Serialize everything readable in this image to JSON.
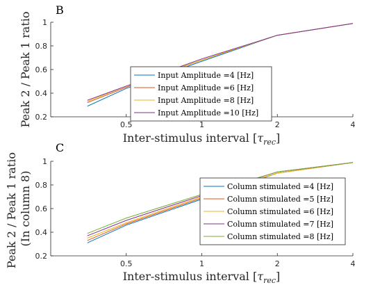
{
  "chart_data": [
    {
      "type": "line",
      "panel_label": "B",
      "xlabel": "Inter-stimulus interval [",
      "xlabel_symbol": "τ",
      "xlabel_sub": "rec",
      "xlabel_close": "]",
      "ylabel_lines": [
        "Peak 2 / Peak 1 ratio"
      ],
      "xlim": [
        0.25,
        4
      ],
      "ylim": [
        0.2,
        1
      ],
      "xticks": [
        0.5,
        1,
        2,
        4
      ],
      "xtick_labels": [
        "0.5",
        "1",
        "2",
        "4"
      ],
      "yticks": [
        0.2,
        0.4,
        0.6,
        0.8,
        1
      ],
      "ytick_labels": [
        "0.2",
        "0.4",
        "0.6",
        "0.8",
        "1"
      ],
      "x_scale": "log",
      "legend_position": "bottom-center",
      "x": [
        0.35,
        0.5,
        1,
        2,
        4
      ],
      "series": [
        {
          "name": "Input Amplitude =4 [Hz]",
          "color": "#0072BD",
          "values": [
            0.29,
            0.44,
            0.67,
            0.89,
            0.99
          ]
        },
        {
          "name": "Input Amplitude =6 [Hz]",
          "color": "#D95319",
          "values": [
            0.32,
            0.45,
            0.68,
            0.89,
            0.99
          ]
        },
        {
          "name": "Input Amplitude =8 [Hz]",
          "color": "#EDB120",
          "values": [
            0.33,
            0.46,
            0.68,
            0.89,
            0.99
          ]
        },
        {
          "name": "Input Amplitude =10 [Hz]",
          "color": "#7E2F8E",
          "values": [
            0.34,
            0.46,
            0.69,
            0.89,
            0.99
          ]
        }
      ]
    },
    {
      "type": "line",
      "panel_label": "C",
      "xlabel": "Inter-stimulus interval [",
      "xlabel_symbol": "τ",
      "xlabel_sub": "rec",
      "xlabel_close": "]",
      "ylabel_lines": [
        "Peak 2 / Peak 1 ratio",
        "(In column 8)"
      ],
      "xlim": [
        0.25,
        4
      ],
      "ylim": [
        0.2,
        1
      ],
      "xticks": [
        0.5,
        1,
        2,
        4
      ],
      "xtick_labels": [
        "0.5",
        "1",
        "2",
        "4"
      ],
      "yticks": [
        0.2,
        0.4,
        0.6,
        0.8,
        1
      ],
      "ytick_labels": [
        "0.2",
        "0.4",
        "0.6",
        "0.8",
        "1"
      ],
      "x_scale": "log",
      "legend_position": "right",
      "x": [
        0.35,
        0.5,
        1,
        2,
        4
      ],
      "series": [
        {
          "name": "Column stimulated =4 [Hz]",
          "color": "#0072BD",
          "values": [
            0.31,
            0.46,
            0.68,
            0.9,
            0.99
          ]
        },
        {
          "name": "Column stimulated =5 [Hz]",
          "color": "#D95319",
          "values": [
            0.33,
            0.47,
            0.69,
            0.9,
            0.99
          ]
        },
        {
          "name": "Column stimulated =6 [Hz]",
          "color": "#EDB120",
          "values": [
            0.35,
            0.48,
            0.7,
            0.9,
            0.99
          ]
        },
        {
          "name": "Column stimulated =7 [Hz]",
          "color": "#7E2F8E",
          "values": [
            0.37,
            0.5,
            0.71,
            0.91,
            0.99
          ]
        },
        {
          "name": "Column stimulated =8 [Hz]",
          "color": "#77AC30",
          "values": [
            0.39,
            0.52,
            0.72,
            0.91,
            0.99
          ]
        }
      ]
    }
  ]
}
